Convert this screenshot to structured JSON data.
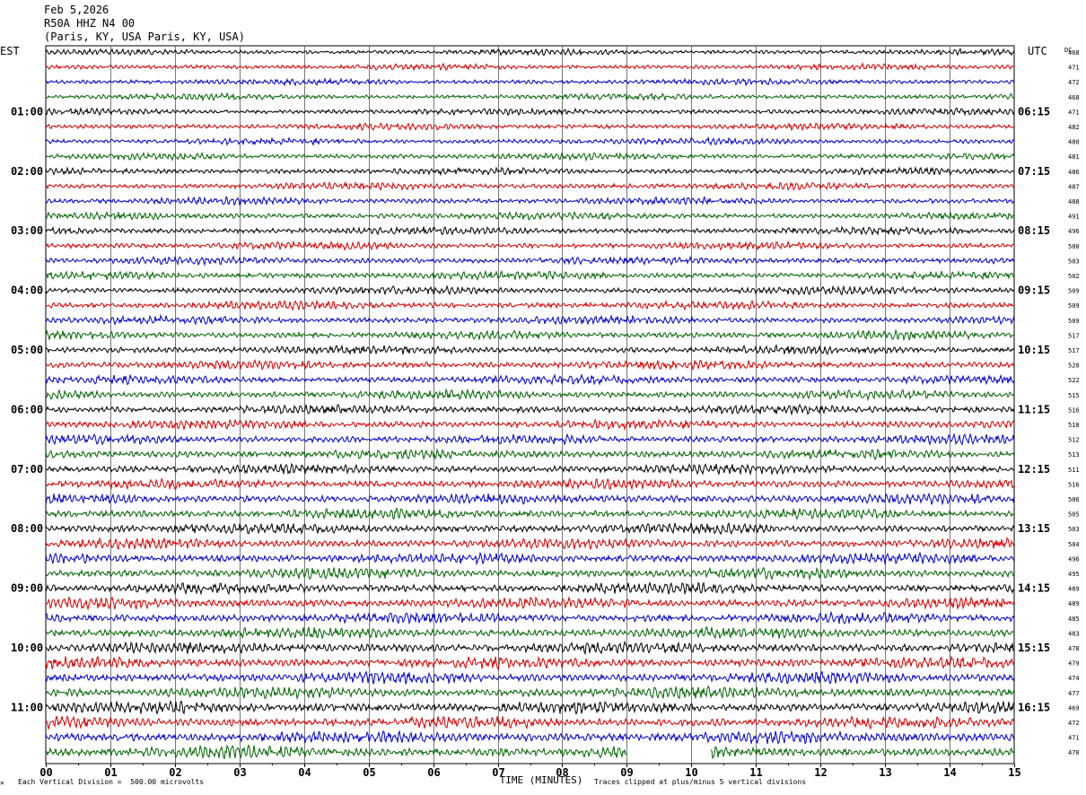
{
  "header": {
    "date": "Feb 5,2026",
    "station": "R50A HHZ N4 00",
    "location": "(Paris, KY, USA Paris, KY, USA)"
  },
  "left_zone_label": "EST",
  "right_zone_label": "UTC",
  "dc_label": "DC",
  "footer": {
    "scale_note": "Each Vertical Division =  500.00 microvolts",
    "clip_note": "Traces clipped at plus/minus 5 vertical divisions",
    "corner_mark": "✕"
  },
  "colors": [
    "#000000",
    "#d40000",
    "#0000c8",
    "#006400"
  ],
  "chart_data": {
    "type": "helicorder",
    "xlabel": "TIME (MINUTES)",
    "xlim": [
      0,
      15
    ],
    "x_ticks": [
      "00",
      "01",
      "02",
      "03",
      "04",
      "05",
      "06",
      "07",
      "08",
      "09",
      "10",
      "11",
      "12",
      "13",
      "14",
      "15"
    ],
    "rows_per_hour": 4,
    "minutes_per_row": 15,
    "est_hour_labels": [
      "01:00",
      "02:00",
      "03:00",
      "04:00",
      "05:00",
      "06:00",
      "07:00",
      "08:00",
      "09:00",
      "10:00",
      "11:00"
    ],
    "utc_hour_labels": [
      "06:15",
      "07:15",
      "08:15",
      "09:15",
      "10:15",
      "11:15",
      "12:15",
      "13:15",
      "14:15",
      "15:15",
      "16:15"
    ],
    "dc_offsets": [
      468,
      471,
      472,
      468,
      471,
      482,
      480,
      481,
      486,
      487,
      488,
      491,
      496,
      500,
      503,
      502,
      509,
      509,
      509,
      517,
      517,
      520,
      522,
      515,
      516,
      518,
      512,
      513,
      511,
      516,
      506,
      505,
      503,
      504,
      496,
      495,
      489,
      489,
      485,
      483,
      478,
      479,
      474,
      477,
      469,
      472,
      471,
      470
    ],
    "last_row_gap_minutes": [
      9.0,
      10.3
    ]
  }
}
